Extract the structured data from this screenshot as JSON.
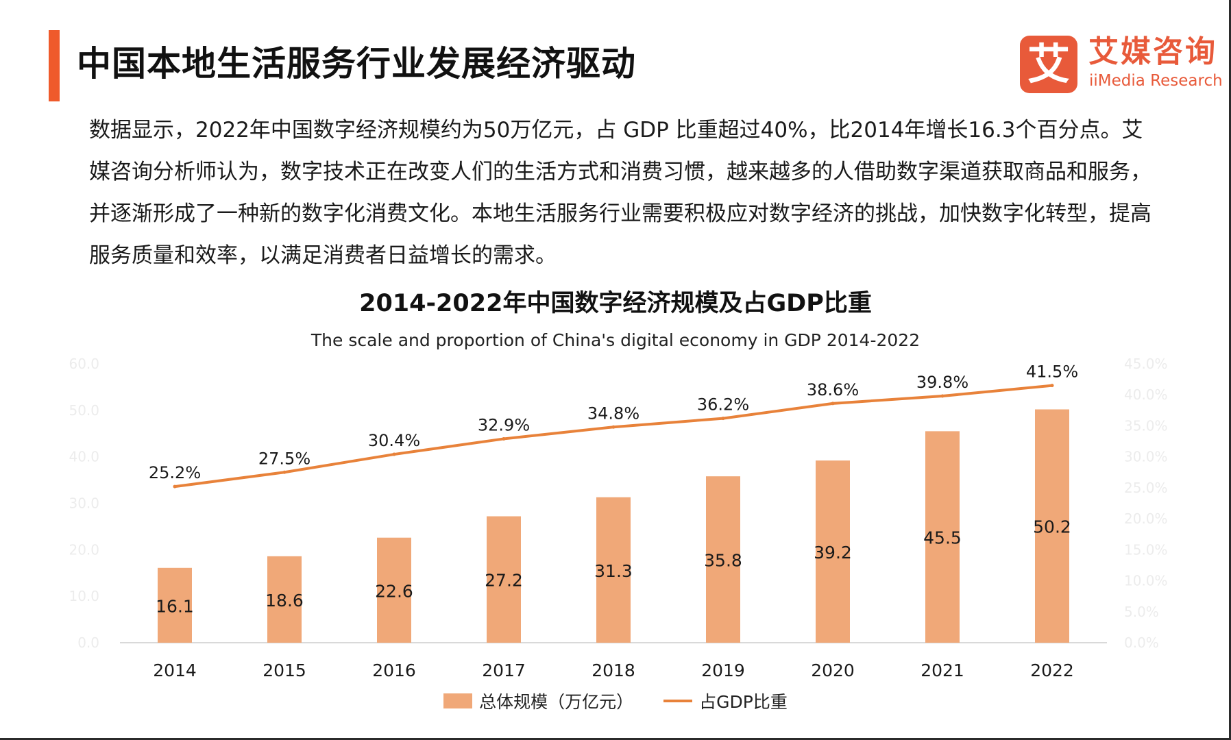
{
  "header": {
    "title": "中国本地生活服务行业发展经济驱动",
    "logo_mark": "艾",
    "logo_cn": "艾媒咨询",
    "logo_en": "iiMedia Research"
  },
  "intro": "数据显示，2022年中国数字经济规模约为50万亿元，占 GDP 比重超过40%，比2014年增长16.3个百分点。艾媒咨询分析师认为，数字技术正在改变人们的生活方式和消费习惯，越来越多的人借助数字渠道获取商品和服务，并逐渐形成了一种新的数字化消费文化。本地生活服务行业需要积极应对数字经济的挑战，加快数字化转型，提高服务质量和效率，以满足消费者日益增长的需求。",
  "colors": {
    "accent": "#ef5a2b",
    "bar": "#f0a878",
    "line": "#e8823a",
    "logo": "#e85a3a"
  },
  "chart_data": {
    "type": "bar",
    "title": "2014-2022年中国数字经济规模及占GDP比重",
    "subtitle": "The scale and proportion of China's digital economy in GDP  2014-2022",
    "categories": [
      "2014",
      "2015",
      "2016",
      "2017",
      "2018",
      "2019",
      "2020",
      "2021",
      "2022"
    ],
    "series": [
      {
        "name": "总体规模（万亿元）",
        "kind": "bar",
        "axis": "left",
        "values": [
          16.1,
          18.6,
          22.6,
          27.2,
          31.3,
          35.8,
          39.2,
          45.5,
          50.2
        ],
        "labels": [
          "16.1",
          "18.6",
          "22.6",
          "27.2",
          "31.3",
          "35.8",
          "39.2",
          "45.5",
          "50.2"
        ]
      },
      {
        "name": "占GDP比重",
        "kind": "line",
        "axis": "right",
        "values": [
          25.2,
          27.5,
          30.4,
          32.9,
          34.8,
          36.2,
          38.6,
          39.8,
          41.5
        ],
        "labels": [
          "25.2%",
          "27.5%",
          "30.4%",
          "32.9%",
          "34.8%",
          "36.2%",
          "38.6%",
          "39.8%",
          "41.5%"
        ]
      }
    ],
    "ylim": [
      0,
      60
    ],
    "y2lim": [
      0,
      45
    ],
    "yticks": [
      "0.0",
      "10.0",
      "20.0",
      "30.0",
      "40.0",
      "50.0",
      "60.0"
    ],
    "y2ticks": [
      "0.0%",
      "5.0%",
      "10.0%",
      "15.0%",
      "20.0%",
      "25.0%",
      "30.0%",
      "35.0%",
      "40.0%",
      "45.0%"
    ],
    "grid": false,
    "legend_position": "bottom"
  }
}
